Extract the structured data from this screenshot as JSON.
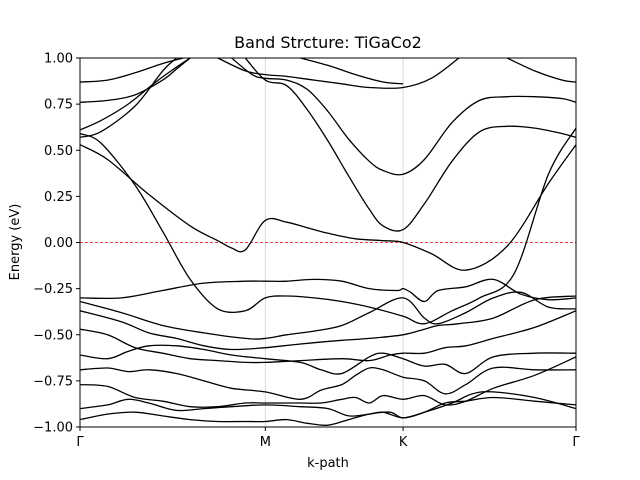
{
  "chart_data": {
    "type": "line",
    "title": "Band Strcture: TiGaCo2",
    "xlabel": "k-path",
    "ylabel": "Energy (eV)",
    "ylim": [
      -1.0,
      1.0
    ],
    "xlim": [
      0,
      3.6
    ],
    "yticks": [
      -1.0,
      -0.75,
      -0.5,
      -0.25,
      0.0,
      0.25,
      0.5,
      0.75,
      1.0
    ],
    "ytick_labels": [
      "−1.00",
      "−0.75",
      "−0.50",
      "−0.25",
      "0.00",
      "0.25",
      "0.50",
      "0.75",
      "1.00"
    ],
    "kpoints": [
      {
        "label": "Γ",
        "x": 0.0
      },
      {
        "label": "M",
        "x": 1.345
      },
      {
        "label": "K",
        "x": 2.345
      },
      {
        "label": "Γ",
        "x": 3.6
      }
    ],
    "fermi_level": 0.0,
    "grid": "vertical lines at high-symmetry points",
    "line_color": "#000000",
    "fermi_color": "#e8000b",
    "series": [
      {
        "x": [
          0,
          0.2,
          0.4,
          0.6,
          0.75
        ],
        "y": [
          0.87,
          0.88,
          0.92,
          0.97,
          1.0
        ]
      },
      {
        "x": [
          0,
          0.2,
          0.4,
          0.6,
          0.7,
          0.8
        ],
        "y": [
          0.76,
          0.77,
          0.8,
          0.88,
          0.94,
          1.0
        ]
      },
      {
        "x": [
          0,
          0.15,
          0.35,
          0.55,
          0.7,
          0.8
        ],
        "y": [
          0.61,
          0.66,
          0.75,
          0.87,
          0.95,
          1.0
        ]
      },
      {
        "x": [
          0,
          0.15,
          0.4,
          0.6,
          0.7
        ],
        "y": [
          0.57,
          0.6,
          0.74,
          0.93,
          1.0
        ]
      },
      {
        "x": [
          0,
          0.2,
          0.5,
          0.8,
          1.0,
          1.1,
          1.2,
          1.345,
          1.5,
          1.65,
          1.8,
          2.0,
          2.2,
          2.345,
          2.55,
          2.8,
          3.1,
          3.4,
          3.6
        ],
        "y": [
          0.53,
          0.45,
          0.26,
          0.09,
          0.01,
          -0.03,
          -0.04,
          0.12,
          0.11,
          0.08,
          0.05,
          0.02,
          0.01,
          0.0,
          -0.06,
          -0.15,
          -0.02,
          0.32,
          0.53
        ]
      },
      {
        "x": [
          0,
          0.15,
          0.4,
          0.6,
          0.8,
          1.0,
          1.2,
          1.345,
          1.5,
          1.7,
          1.9,
          2.1,
          2.345,
          2.5,
          2.7,
          2.9,
          3.15,
          3.4,
          3.6
        ],
        "y": [
          0.59,
          0.54,
          0.31,
          0.06,
          -0.2,
          -0.36,
          -0.37,
          -0.3,
          -0.29,
          -0.3,
          -0.32,
          -0.35,
          -0.4,
          -0.44,
          -0.37,
          -0.3,
          -0.17,
          0.37,
          0.62
        ]
      },
      {
        "x": [
          0,
          0.3,
          0.6,
          0.9,
          1.2,
          1.345,
          1.5,
          1.7,
          1.9,
          2.1,
          2.3,
          2.345,
          2.4,
          2.5,
          2.6,
          2.8,
          3.0,
          3.2,
          3.4,
          3.6
        ],
        "y": [
          -0.3,
          -0.3,
          -0.26,
          -0.22,
          -0.21,
          -0.21,
          -0.21,
          -0.2,
          -0.21,
          -0.25,
          -0.26,
          -0.25,
          -0.27,
          -0.32,
          -0.26,
          -0.24,
          -0.2,
          -0.28,
          -0.31,
          -0.3
        ]
      },
      {
        "x": [
          0,
          0.3,
          0.6,
          0.9,
          1.2,
          1.345,
          1.5,
          1.7,
          1.9,
          2.1,
          2.345,
          2.5,
          2.6,
          2.8,
          3.0,
          3.2,
          3.4,
          3.6
        ],
        "y": [
          -0.32,
          -0.38,
          -0.45,
          -0.49,
          -0.52,
          -0.52,
          -0.5,
          -0.48,
          -0.45,
          -0.38,
          -0.3,
          -0.41,
          -0.44,
          -0.38,
          -0.3,
          -0.27,
          -0.35,
          -0.36
        ]
      },
      {
        "x": [
          0,
          0.3,
          0.5,
          0.7,
          0.9,
          1.1,
          1.345,
          1.6,
          1.9,
          2.1,
          2.345,
          2.5,
          2.6,
          2.75,
          3.0,
          3.3,
          3.6
        ],
        "y": [
          -0.37,
          -0.43,
          -0.49,
          -0.52,
          -0.56,
          -0.58,
          -0.57,
          -0.55,
          -0.53,
          -0.52,
          -0.5,
          -0.47,
          -0.45,
          -0.44,
          -0.41,
          -0.31,
          -0.29
        ]
      },
      {
        "x": [
          0,
          0.2,
          0.4,
          0.6,
          0.8,
          1.0,
          1.2,
          1.345,
          1.6,
          1.9,
          2.1,
          2.25,
          2.345,
          2.5,
          2.65,
          2.8,
          3.0,
          3.3,
          3.6
        ],
        "y": [
          -0.47,
          -0.5,
          -0.57,
          -0.6,
          -0.63,
          -0.64,
          -0.65,
          -0.65,
          -0.64,
          -0.63,
          -0.64,
          -0.61,
          -0.6,
          -0.6,
          -0.57,
          -0.56,
          -0.52,
          -0.46,
          -0.37
        ]
      },
      {
        "x": [
          0,
          0.2,
          0.35,
          0.5,
          0.7,
          0.9,
          1.1,
          1.345,
          1.6,
          1.75,
          1.9,
          2.1,
          2.2,
          2.345,
          2.5,
          2.65,
          2.8,
          3.0,
          3.3,
          3.6
        ],
        "y": [
          -0.61,
          -0.63,
          -0.59,
          -0.56,
          -0.56,
          -0.58,
          -0.61,
          -0.63,
          -0.65,
          -0.69,
          -0.71,
          -0.62,
          -0.6,
          -0.63,
          -0.67,
          -0.66,
          -0.71,
          -0.62,
          -0.6,
          -0.6
        ]
      },
      {
        "x": [
          0,
          0.2,
          0.35,
          0.5,
          0.7,
          0.9,
          1.1,
          1.345,
          1.6,
          1.75,
          1.9,
          2.0,
          2.1,
          2.2,
          2.345,
          2.5,
          2.65,
          2.8,
          3.0,
          3.3,
          3.6
        ],
        "y": [
          -0.69,
          -0.68,
          -0.7,
          -0.69,
          -0.71,
          -0.75,
          -0.79,
          -0.81,
          -0.85,
          -0.8,
          -0.77,
          -0.72,
          -0.68,
          -0.69,
          -0.73,
          -0.75,
          -0.82,
          -0.77,
          -0.68,
          -0.69,
          -0.69
        ]
      },
      {
        "x": [
          0,
          0.2,
          0.4,
          0.6,
          0.8,
          1.0,
          1.2,
          1.345,
          1.6,
          1.75,
          1.9,
          2.0,
          2.1,
          2.2,
          2.345,
          2.5,
          2.65,
          2.8,
          3.0,
          3.3,
          3.6
        ],
        "y": [
          -0.77,
          -0.78,
          -0.84,
          -0.86,
          -0.89,
          -0.89,
          -0.87,
          -0.87,
          -0.87,
          -0.87,
          -0.85,
          -0.84,
          -0.87,
          -0.83,
          -0.85,
          -0.83,
          -0.88,
          -0.86,
          -0.79,
          -0.72,
          -0.62
        ]
      },
      {
        "x": [
          0,
          0.2,
          0.35,
          0.5,
          0.7,
          0.9,
          1.1,
          1.345,
          1.6,
          1.8,
          1.95,
          2.1,
          2.2,
          2.345,
          2.5,
          2.65,
          2.8,
          3.0,
          3.3,
          3.6
        ],
        "y": [
          -0.9,
          -0.88,
          -0.85,
          -0.87,
          -0.91,
          -0.9,
          -0.89,
          -0.88,
          -0.89,
          -0.9,
          -0.94,
          -0.93,
          -0.92,
          -0.95,
          -0.92,
          -0.87,
          -0.86,
          -0.84,
          -0.86,
          -0.88
        ]
      },
      {
        "x": [
          0,
          0.2,
          0.4,
          0.6,
          0.8,
          1.0,
          1.2,
          1.345,
          1.5,
          1.65,
          1.8,
          1.95,
          2.1,
          2.25,
          2.345,
          2.5,
          2.7,
          2.85,
          3.0,
          3.3,
          3.6
        ],
        "y": [
          -0.96,
          -0.93,
          -0.92,
          -0.94,
          -0.96,
          -0.97,
          -0.97,
          -0.97,
          -0.96,
          -0.98,
          -0.99,
          -0.96,
          -0.93,
          -0.92,
          -0.95,
          -0.92,
          -0.87,
          -0.82,
          -0.81,
          -0.84,
          -0.9
        ]
      },
      {
        "x": [
          1.0,
          1.2,
          1.345,
          1.5,
          1.7,
          1.9,
          2.1,
          2.345,
          2.55,
          2.75
        ],
        "y": [
          1.0,
          0.93,
          0.91,
          0.9,
          0.88,
          0.86,
          0.84,
          0.84,
          0.89,
          1.0
        ]
      },
      {
        "x": [
          1.1,
          1.25,
          1.345,
          1.5,
          1.65,
          1.8,
          1.95,
          2.1,
          2.2,
          2.345,
          2.5,
          2.7,
          2.9,
          3.1,
          3.3,
          3.5,
          3.6
        ],
        "y": [
          1.0,
          0.91,
          0.89,
          0.88,
          0.83,
          0.71,
          0.56,
          0.44,
          0.39,
          0.37,
          0.45,
          0.65,
          0.77,
          0.79,
          0.79,
          0.78,
          0.76
        ]
      },
      {
        "x": [
          1.2,
          1.345,
          1.5,
          1.65,
          1.8,
          1.95,
          2.1,
          2.2,
          2.345,
          2.5,
          2.7,
          2.9,
          3.1,
          3.3,
          3.5,
          3.6
        ],
        "y": [
          1.0,
          0.88,
          0.85,
          0.72,
          0.55,
          0.36,
          0.18,
          0.09,
          0.07,
          0.21,
          0.44,
          0.6,
          0.63,
          0.62,
          0.59,
          0.57
        ]
      },
      {
        "x": [
          1.6,
          1.8,
          2.0,
          2.2,
          2.345
        ],
        "y": [
          1.0,
          0.96,
          0.91,
          0.87,
          0.86
        ]
      },
      {
        "x": [
          3.1,
          3.3,
          3.5,
          3.6
        ],
        "y": [
          1.0,
          0.93,
          0.88,
          0.87
        ]
      }
    ]
  }
}
